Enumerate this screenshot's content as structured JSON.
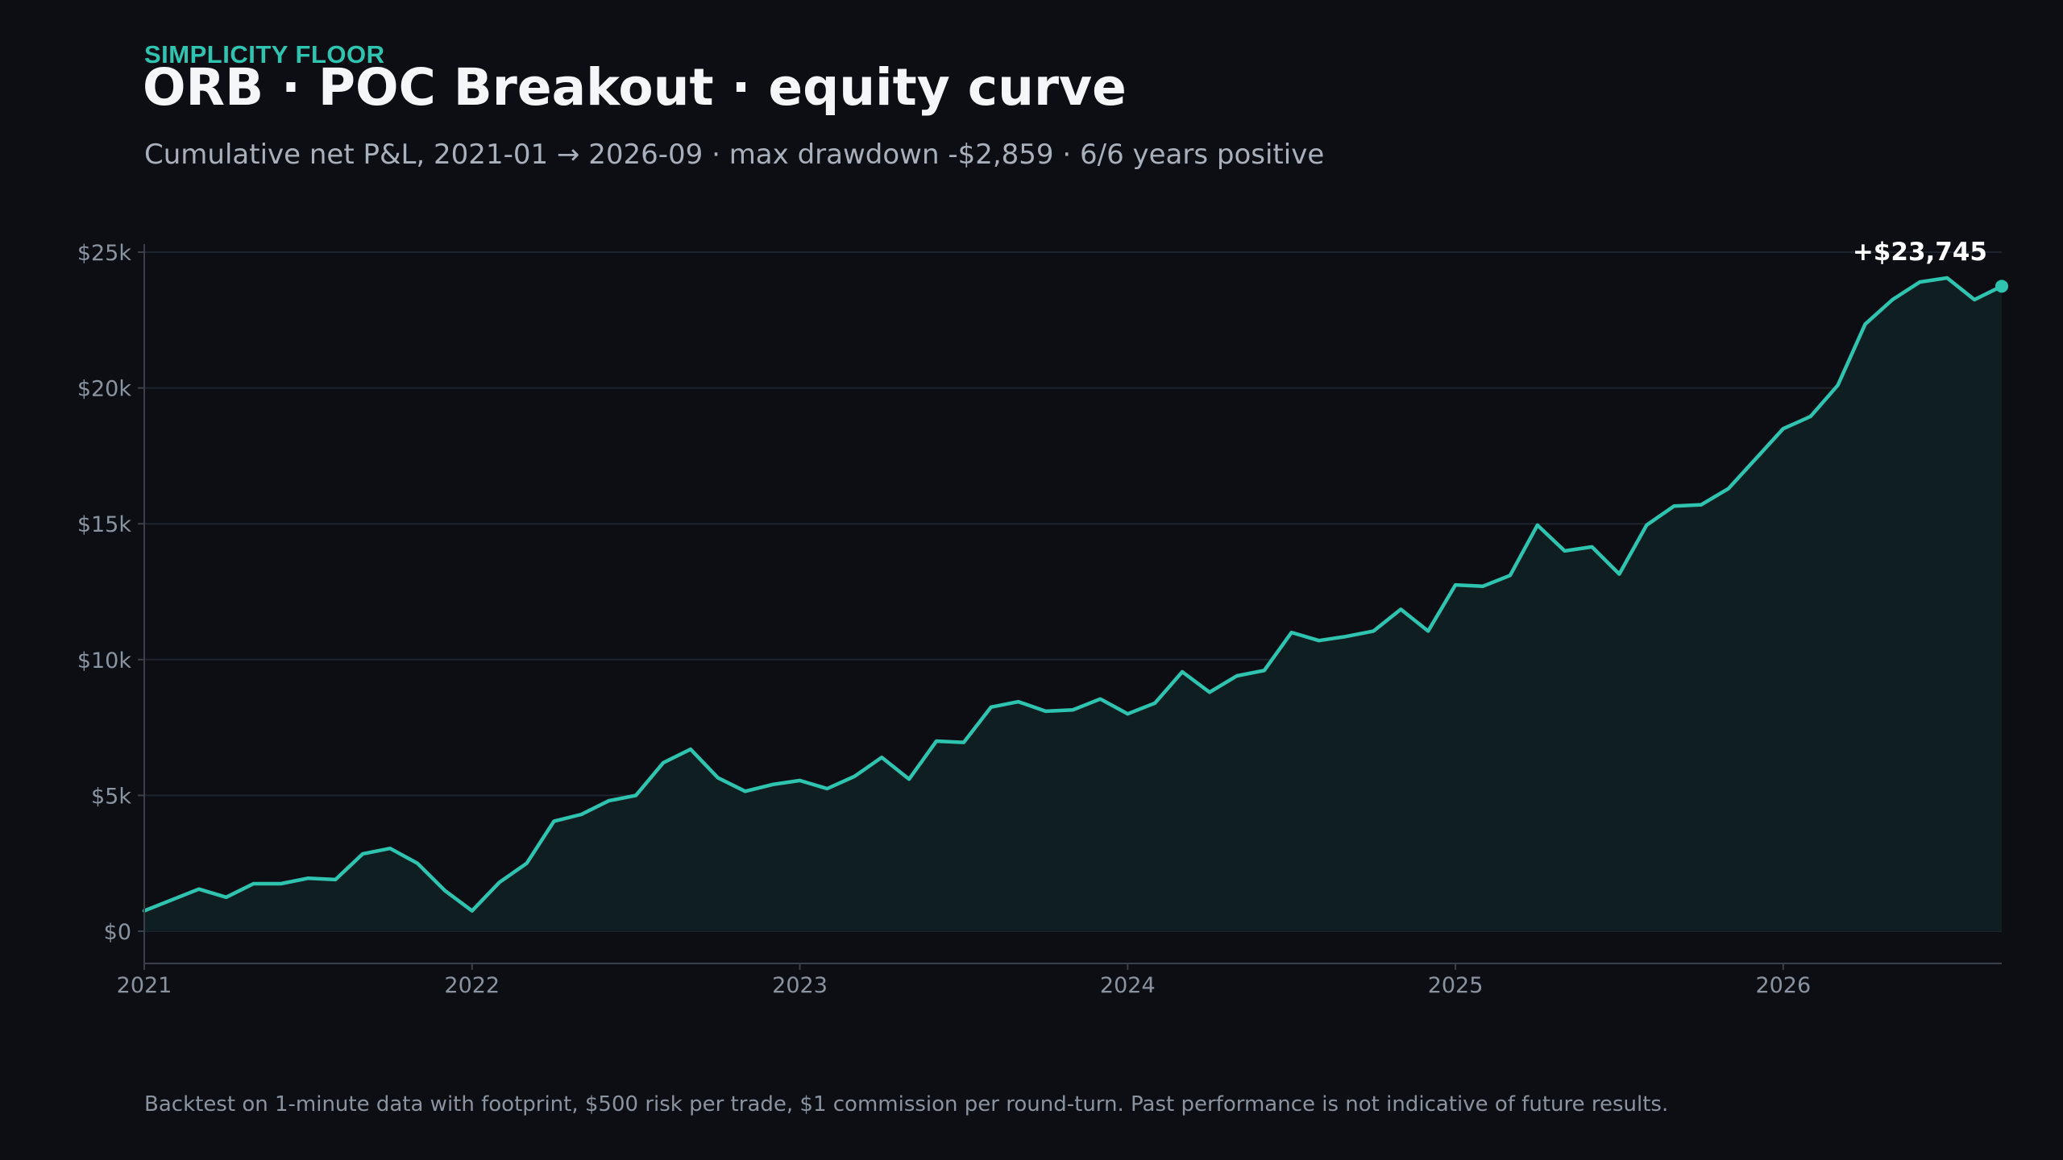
{
  "header": {
    "eyebrow": "SIMPLICITY FLOOR",
    "title": "ORB · POC Breakout · equity curve",
    "subtitle": "Cumulative net P&L, 2021-01 → 2026-09 · max drawdown -$2,859 · 6/6 years positive"
  },
  "footnote": "Backtest on 1-minute data with footprint, $500 risk per trade, $1 commission per round-turn. Past performance is not indicative of future results.",
  "colors": {
    "background": "#0c0e13",
    "line": "#2ec4b0",
    "area": "#0f1f21",
    "grid": "#1f232c",
    "eyebrow": "#2ec4b0"
  },
  "chart_data": {
    "type": "area",
    "title": "ORB · POC Breakout · equity curve",
    "xlabel": "",
    "ylabel": "",
    "x_start": "2021-01",
    "x_end": "2026-09",
    "x_ticks": [
      "2021",
      "2022",
      "2023",
      "2024",
      "2025",
      "2026"
    ],
    "y_ticks": [
      "$0",
      "$5k",
      "$10k",
      "$15k",
      "$20k",
      "$25k"
    ],
    "y_tick_values": [
      0,
      5000,
      10000,
      15000,
      20000,
      25000
    ],
    "ylim": [
      -1200,
      25000
    ],
    "grid": true,
    "end_label": "+$23,745",
    "series": [
      {
        "x": [
          "2021-01",
          "2021-02",
          "2021-03",
          "2021-04",
          "2021-05",
          "2021-06",
          "2021-07",
          "2021-08",
          "2021-09",
          "2021-10",
          "2021-11",
          "2021-12",
          "2022-01",
          "2022-02",
          "2022-03",
          "2022-04",
          "2022-05",
          "2022-06",
          "2022-07",
          "2022-08",
          "2022-09",
          "2022-10",
          "2022-11",
          "2022-12",
          "2023-01",
          "2023-02",
          "2023-03",
          "2023-04",
          "2023-05",
          "2023-06",
          "2023-07",
          "2023-08",
          "2023-09",
          "2023-10",
          "2023-11",
          "2023-12",
          "2024-01",
          "2024-02",
          "2024-03",
          "2024-04",
          "2024-05",
          "2024-06",
          "2024-07",
          "2024-08",
          "2024-09",
          "2024-10",
          "2024-11",
          "2024-12",
          "2025-01",
          "2025-02",
          "2025-03",
          "2025-04",
          "2025-05",
          "2025-06",
          "2025-07",
          "2025-08",
          "2025-09",
          "2025-10",
          "2025-11",
          "2025-12",
          "2026-01",
          "2026-02",
          "2026-03",
          "2026-04",
          "2026-05",
          "2026-06",
          "2026-07",
          "2026-08",
          "2026-09"
        ],
        "values": [
          750,
          1150,
          1550,
          1250,
          1750,
          1750,
          1950,
          1900,
          2850,
          3050,
          2500,
          1500,
          750,
          1800,
          2500,
          4050,
          4300,
          4800,
          5000,
          6200,
          6700,
          5650,
          5150,
          5400,
          5550,
          5250,
          5700,
          6400,
          5600,
          7000,
          6950,
          8250,
          8450,
          8100,
          8150,
          8550,
          8000,
          8400,
          9550,
          8800,
          9400,
          9600,
          11000,
          10700,
          10850,
          11050,
          11850,
          11050,
          12750,
          12700,
          13100,
          14950,
          14000,
          14150,
          13150,
          14950,
          15650,
          15700,
          16300,
          17400,
          18500,
          18950,
          20100,
          22350,
          23250,
          23900,
          24050,
          23250,
          23745
        ]
      }
    ]
  }
}
